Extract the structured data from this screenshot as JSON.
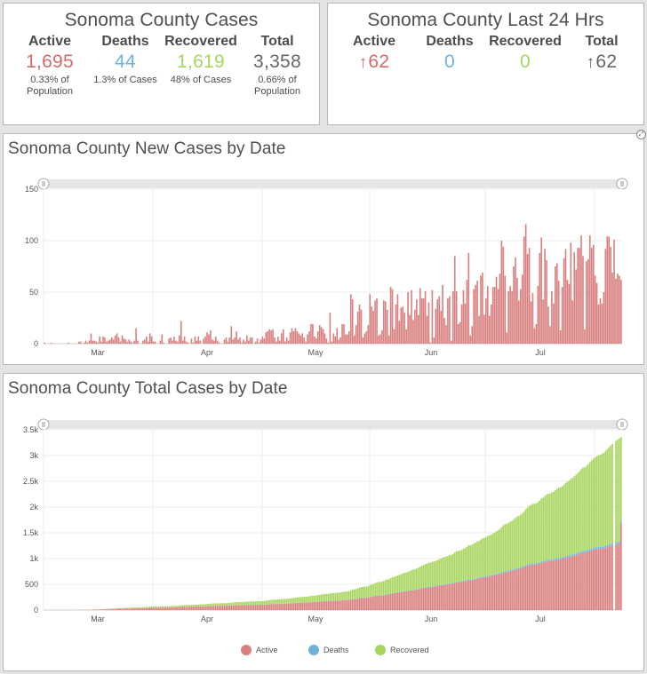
{
  "cases_panel": {
    "title": "Sonoma County Cases",
    "stats": [
      {
        "label": "Active",
        "value": "1,695",
        "sub": "0.33% of Population",
        "color": "#d46a6a"
      },
      {
        "label": "Deaths",
        "value": "44",
        "sub": "1.3% of Cases",
        "color": "#6db4d8"
      },
      {
        "label": "Recovered",
        "value": "1,619",
        "sub": "48% of Cases",
        "color": "#a8d55e"
      },
      {
        "label": "Total",
        "value": "3,358",
        "sub": "0.66% of Population",
        "color": "#666666"
      }
    ]
  },
  "last24_panel": {
    "title": "Sonoma County Last 24 Hrs",
    "stats": [
      {
        "label": "Active",
        "value": "62",
        "arrow": "↑",
        "color": "#d46a6a"
      },
      {
        "label": "Deaths",
        "value": "0",
        "arrow": "",
        "color": "#6db4d8"
      },
      {
        "label": "Recovered",
        "value": "0",
        "arrow": "",
        "color": "#a8d55e"
      },
      {
        "label": "Total",
        "value": "62",
        "arrow": "↑",
        "color": "#666666"
      }
    ]
  },
  "chart_data": [
    {
      "type": "bar",
      "title": "Sonoma County New Cases by Date",
      "xlabel": "",
      "ylabel": "",
      "x_tick_labels": [
        "Mar",
        "Apr",
        "May",
        "Jun",
        "Jul"
      ],
      "y_ticks": [
        0,
        50,
        100,
        150
      ],
      "ylim": [
        0,
        150
      ],
      "grid": true,
      "bar_color": "#d97f7f",
      "start_date": "2020-02-12",
      "values": [
        1,
        0,
        0,
        0,
        1,
        0,
        0,
        0,
        0,
        0,
        0,
        0,
        0,
        0,
        1,
        0,
        0,
        0,
        0,
        0,
        2,
        2,
        0,
        1,
        3,
        1,
        3,
        10,
        3,
        3,
        2,
        1,
        7,
        2,
        7,
        6,
        2,
        3,
        4,
        6,
        4,
        8,
        10,
        6,
        2,
        8,
        5,
        4,
        2,
        4,
        2,
        1,
        3,
        15,
        3,
        0,
        0,
        3,
        4,
        7,
        2,
        10,
        7,
        2,
        2,
        0,
        0,
        3,
        9,
        1,
        0,
        0,
        5,
        6,
        3,
        7,
        3,
        2,
        8,
        22,
        3,
        7,
        2,
        1,
        0,
        5,
        1,
        7,
        3,
        7,
        3,
        0,
        5,
        7,
        11,
        9,
        13,
        4,
        3,
        7,
        3,
        1,
        0,
        0,
        4,
        6,
        2,
        6,
        17,
        4,
        6,
        12,
        4,
        6,
        1,
        4,
        2,
        8,
        3,
        6,
        6,
        0,
        2,
        5,
        1,
        4,
        7,
        5,
        11,
        12,
        14,
        13,
        14,
        6,
        2,
        7,
        3,
        10,
        14,
        2,
        6,
        3,
        11,
        15,
        12,
        15,
        12,
        10,
        8,
        10,
        6,
        2,
        9,
        12,
        19,
        19,
        7,
        5,
        12,
        18,
        16,
        14,
        10,
        5,
        1,
        30,
        2,
        10,
        7,
        15,
        4,
        6,
        19,
        19,
        9,
        9,
        12,
        48,
        43,
        8,
        18,
        31,
        38,
        33,
        6,
        10,
        12,
        18,
        48,
        36,
        32,
        42,
        44,
        8,
        9,
        13,
        42,
        41,
        33,
        8,
        55,
        53,
        14,
        38,
        48,
        22,
        35,
        36,
        30,
        14,
        50,
        28,
        52,
        23,
        33,
        43,
        28,
        54,
        44,
        44,
        51,
        27,
        40,
        1,
        52,
        6,
        34,
        43,
        46,
        32,
        57,
        25,
        18,
        44,
        46,
        3,
        51,
        85,
        51,
        19,
        21,
        38,
        52,
        39,
        62,
        88,
        8,
        17,
        53,
        57,
        61,
        27,
        66,
        69,
        28,
        44,
        56,
        27,
        38,
        55,
        55,
        65,
        53,
        68,
        100,
        94,
        66,
        11,
        51,
        56,
        51,
        75,
        84,
        64,
        42,
        53,
        67,
        104,
        116,
        87,
        93,
        41,
        49,
        15,
        19,
        56,
        88,
        103,
        43,
        92,
        81,
        36,
        17,
        51,
        39,
        75,
        78,
        61,
        13,
        55,
        83,
        92,
        62,
        58,
        98,
        42,
        89,
        72,
        93,
        93,
        105,
        85,
        14,
        80,
        82,
        105,
        93,
        96,
        66,
        59,
        38,
        44,
        39,
        50,
        92,
        104,
        104,
        94,
        69,
        101,
        63,
        68,
        66,
        62
      ]
    },
    {
      "type": "bar",
      "stacked": true,
      "title": "Sonoma County Total Cases by Date",
      "xlabel": "",
      "ylabel": "",
      "x_tick_labels": [
        "Mar",
        "Apr",
        "May",
        "Jun",
        "Jul"
      ],
      "y_tick_labels": [
        "0",
        "500",
        "1k",
        "1.5k",
        "2k",
        "2.5k",
        "3k",
        "3.5k"
      ],
      "ylim": [
        0,
        3500
      ],
      "grid": true,
      "series": [
        {
          "name": "Active",
          "color": "#d97f7f"
        },
        {
          "name": "Deaths",
          "color": "#6db4d8"
        },
        {
          "name": "Recovered",
          "color": "#a8d55e"
        }
      ],
      "cumulative_total_at_end": 3358,
      "active_at_end": 1695,
      "deaths_at_end": 44,
      "recovered_at_end": 1619
    }
  ]
}
